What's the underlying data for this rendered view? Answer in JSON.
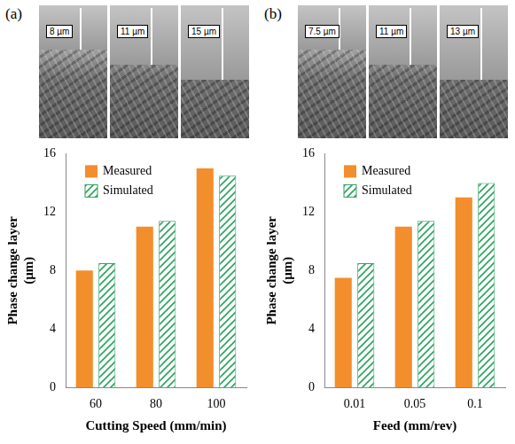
{
  "chart_data": [
    {
      "type": "bar",
      "title": "(a)",
      "annotations": [
        "8 µm",
        "11 µm",
        "15 µm"
      ],
      "xlabel": "Cutting Speed (mm/min)",
      "ylabel": "Phase change layer (µm)",
      "categories": [
        "60",
        "80",
        "100"
      ],
      "series": [
        {
          "name": "Measured",
          "color": "#f28e2b",
          "values": [
            8,
            11,
            15
          ]
        },
        {
          "name": "Simulated",
          "color": "#2ca25f",
          "values": [
            8.5,
            11.4,
            14.5
          ]
        }
      ],
      "ylim": [
        0,
        16
      ],
      "yticks": [
        0,
        4,
        8,
        12,
        16
      ],
      "legend": "upper left",
      "grid": false
    },
    {
      "type": "bar",
      "title": "(b)",
      "annotations": [
        "7.5 µm",
        "11 µm",
        "13 µm"
      ],
      "xlabel": "Feed (mm/rev)",
      "ylabel": "Phase change layer (µm)",
      "categories": [
        "0.01",
        "0.05",
        "0.1"
      ],
      "series": [
        {
          "name": "Measured",
          "color": "#f28e2b",
          "values": [
            7.5,
            11,
            13
          ]
        },
        {
          "name": "Simulated",
          "color": "#2ca25f",
          "values": [
            8.5,
            11.4,
            14
          ]
        }
      ],
      "ylim": [
        0,
        16
      ],
      "yticks": [
        0,
        4,
        8,
        12,
        16
      ],
      "legend": "upper left",
      "grid": false
    }
  ]
}
